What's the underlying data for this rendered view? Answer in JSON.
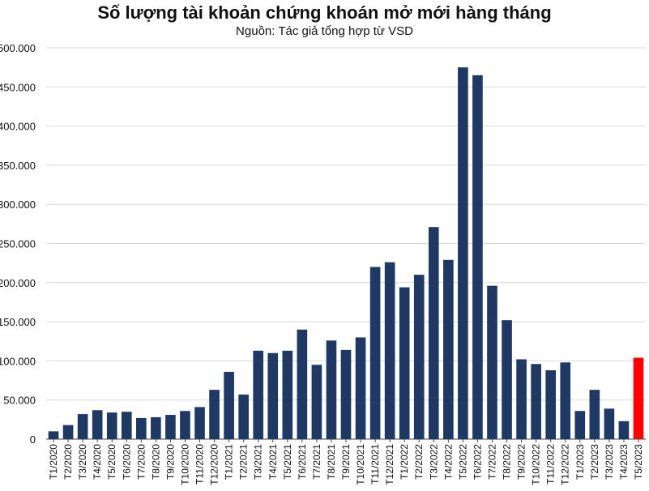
{
  "colors": {
    "bar": "#1f3864",
    "highlight": "#ff0000",
    "grid": "#d9d9d9",
    "axis": "#444444",
    "text": "#111111"
  },
  "chart_data": {
    "type": "bar",
    "title": "Số lượng tài khoản chứng khoán mở mới hàng tháng",
    "subtitle": "Nguồn: Tác giả tổng hợp từ VSD",
    "xlabel": "",
    "ylabel": "",
    "ylim": [
      0,
      500000
    ],
    "yticks": [
      0,
      50000,
      100000,
      150000,
      200000,
      250000,
      300000,
      350000,
      400000,
      450000,
      500000
    ],
    "ytick_labels": [
      "0",
      "50.000",
      "100.000",
      "150.000",
      "200.000",
      "250.000",
      "300.000",
      "350.000",
      "400.000",
      "450.000",
      "500.000"
    ],
    "grid": true,
    "legend": "none",
    "categories": [
      "T1/2020",
      "T2/2020",
      "T3/2020",
      "T4/2020",
      "T5/2020",
      "T6/2020",
      "T7/2020",
      "T8/2020",
      "T9/2020",
      "T10/2020",
      "T11/2020",
      "T12/2020",
      "T1/2021",
      "T2/2021",
      "T3/2021",
      "T4/2021",
      "T5/2021",
      "T6/2021",
      "T7/2021",
      "T8/2021",
      "T9/2021",
      "T10/2021",
      "T11/2021",
      "T12/2021",
      "T1/2022",
      "T2/2022",
      "T3/2022",
      "T4/2022",
      "T5/2022",
      "T6/2022",
      "T7/2022",
      "T8/2022",
      "T9/2022",
      "T10/2022",
      "T11/2022",
      "T12/2022",
      "T1/2023",
      "T2/2023",
      "T3/2023",
      "T4/2023",
      "T5/2023"
    ],
    "values": [
      10000,
      18000,
      32000,
      37000,
      34000,
      35000,
      27000,
      28000,
      31000,
      36000,
      41000,
      63000,
      86000,
      57000,
      113000,
      110000,
      113000,
      140000,
      95000,
      126000,
      114000,
      130000,
      220000,
      226000,
      194000,
      210000,
      271000,
      229000,
      475000,
      465000,
      196000,
      152000,
      102000,
      96000,
      88000,
      98000,
      36000,
      63000,
      39000,
      23000,
      104000
    ],
    "highlight_index": 40
  }
}
